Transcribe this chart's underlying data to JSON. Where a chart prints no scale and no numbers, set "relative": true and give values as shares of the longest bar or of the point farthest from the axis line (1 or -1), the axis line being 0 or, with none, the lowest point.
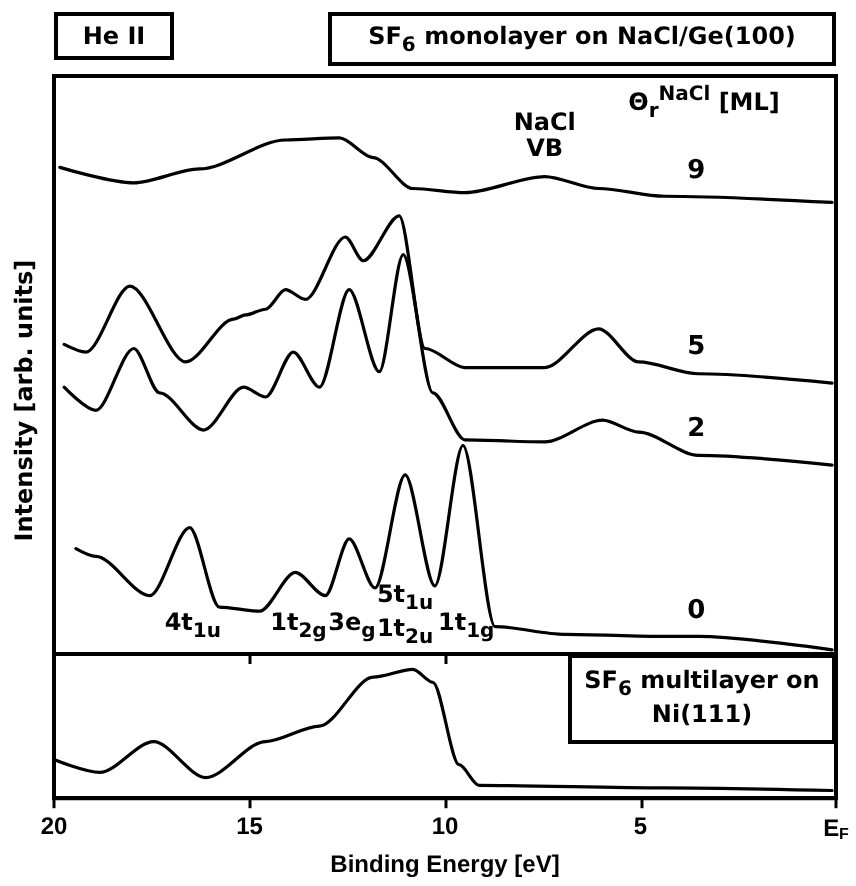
{
  "chart_data": [
    {
      "type": "line",
      "title": "SF$_{6}$ monolayer on NaCl/Ge(100)",
      "ylabel": "Intensity [arb. units]",
      "legend_title": "Θ$_{r}$$^{NaCl}$ [ML]",
      "relative": true,
      "xlim": [
        20,
        0
      ],
      "xticks": [
        20,
        15,
        10,
        5,
        0
      ],
      "tick_labels": false,
      "marker": "none",
      "line_style": "solid",
      "annotations": [
        "He II",
        {
          "text": "NaCl VB",
          "x": 7.45,
          "y": 0.925
        },
        "4t$_{1u}$",
        "1t$_{2g}$",
        "3e$_{g}$",
        "5t$_{1u}$ 1t$_{2u}$",
        "1t$_{1g}$"
      ],
      "series": [
        {
          "name": "9",
          "color": "#000000",
          "x": [
            19.85,
            17.96,
            16.28,
            14.08,
            12.7,
            11.84,
            10.82,
            9.49,
            7.45,
            6.07,
            4.39,
            0.1
          ],
          "values": [
            0.943,
            0.913,
            0.94,
            0.996,
            1.0,
            0.962,
            0.902,
            0.894,
            0.925,
            0.902,
            0.887,
            0.875
          ]
        },
        {
          "name": "5",
          "color": "#000000",
          "x": [
            19.74,
            19.18,
            18.06,
            16.63,
            15.41,
            15.1,
            14.59,
            14.08,
            13.57,
            12.55,
            12.09,
            11.17,
            10.51,
            9.49,
            7.45,
            6.07,
            5.05,
            3.52,
            0.1
          ],
          "values": [
            0.6,
            0.585,
            0.713,
            0.566,
            0.649,
            0.657,
            0.668,
            0.706,
            0.687,
            0.808,
            0.762,
            0.849,
            0.592,
            0.555,
            0.555,
            0.63,
            0.566,
            0.543,
            0.525
          ]
        },
        {
          "name": "2",
          "color": "#000000",
          "x": [
            19.74,
            18.93,
            17.96,
            17.3,
            16.17,
            15.15,
            14.59,
            13.88,
            13.21,
            12.45,
            11.68,
            11.07,
            10.31,
            9.49,
            7.45,
            5.97,
            5.05,
            3.52,
            0.1
          ],
          "values": [
            0.517,
            0.472,
            0.592,
            0.506,
            0.434,
            0.517,
            0.498,
            0.585,
            0.517,
            0.706,
            0.547,
            0.774,
            0.506,
            0.415,
            0.411,
            0.453,
            0.43,
            0.385,
            0.366
          ]
        },
        {
          "name": "0",
          "color": "#000000",
          "x": [
            19.44,
            18.93,
            17.55,
            16.53,
            15.77,
            14.74,
            13.83,
            13.06,
            12.45,
            11.79,
            11.02,
            10.26,
            9.54,
            8.72,
            6.94,
            4.39,
            3.52,
            0.1
          ],
          "values": [
            0.204,
            0.189,
            0.113,
            0.245,
            0.091,
            0.083,
            0.158,
            0.113,
            0.223,
            0.128,
            0.347,
            0.132,
            0.404,
            0.053,
            0.038,
            0.034,
            0.034,
            0.008
          ]
        }
      ]
    },
    {
      "type": "line",
      "title": "SF$_{6}$ multilayer on Ni(111)",
      "xlabel": "Binding Energy [eV]",
      "relative": true,
      "xlim": [
        20,
        0
      ],
      "xticks": [
        20,
        15,
        10,
        5,
        {
          "value": 0,
          "label": "E$_{F}$"
        }
      ],
      "tick_labels": "x",
      "marker": "none",
      "line_style": "solid",
      "series": [
        {
          "color": "#000000",
          "x": [
            20.0,
            18.83,
            17.45,
            16.12,
            14.59,
            13.21,
            11.84,
            10.82,
            10.31,
            9.64,
            9.13,
            4.39,
            0.1
          ],
          "values": [
            0.3,
            0.2,
            0.44,
            0.16,
            0.44,
            0.56,
            0.94,
            1.0,
            0.9,
            0.26,
            0.1,
            0.08,
            0.06
          ]
        }
      ]
    }
  ]
}
